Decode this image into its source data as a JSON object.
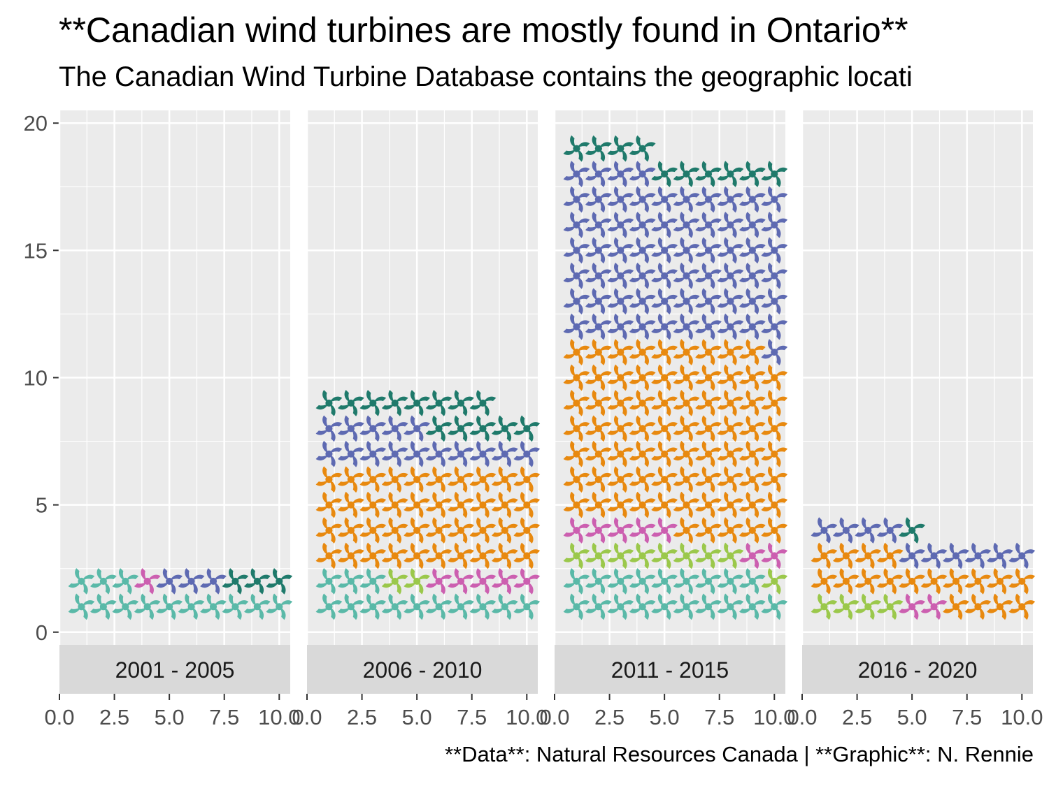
{
  "chart_data": {
    "type": "scatter",
    "title": "**Canadian wind turbines are mostly found in Ontario**",
    "subtitle": "The Canadian Wind Turbine Database contains the geographic locati",
    "caption": "**Data**: Natural Resources Canada | **Graphic**: N. Rennie",
    "xlim": [
      0,
      10.5
    ],
    "ylim": [
      0,
      20
    ],
    "x_ticks": [
      "0.0",
      "2.5",
      "5.0",
      "7.5",
      "10.0"
    ],
    "y_ticks": [
      "0",
      "5",
      "10",
      "15",
      "20"
    ],
    "grid": true,
    "series_colors": {
      "teal_light": "#5ab9a8",
      "magenta": "#cc5fb0",
      "slate_blue": "#5e6ab2",
      "green_dark": "#1f7a6b",
      "lime": "#9bc84b",
      "orange": "#e8890f"
    },
    "icon": "pinwheel-icon",
    "panels": [
      {
        "label": "2001 - 2005",
        "rows": [
          [
            "teal_light",
            10
          ],
          [
            "teal_light",
            3,
            "magenta",
            1,
            "slate_blue",
            3,
            "green_dark",
            3
          ]
        ]
      },
      {
        "label": "2006 - 2010",
        "rows": [
          [
            "teal_light",
            10
          ],
          [
            "teal_light",
            3,
            "lime",
            2,
            "magenta",
            5
          ],
          [
            "orange",
            10
          ],
          [
            "orange",
            10
          ],
          [
            "orange",
            10
          ],
          [
            "orange",
            10
          ],
          [
            "slate_blue",
            10
          ],
          [
            "slate_blue",
            5,
            "green_dark",
            5
          ],
          [
            "green_dark",
            8
          ]
        ]
      },
      {
        "label": "2011 - 2015",
        "rows": [
          [
            "teal_light",
            10
          ],
          [
            "teal_light",
            9,
            "lime",
            1
          ],
          [
            "lime",
            8,
            "magenta",
            2
          ],
          [
            "magenta",
            5,
            "orange",
            5
          ],
          [
            "orange",
            10
          ],
          [
            "orange",
            10
          ],
          [
            "orange",
            10
          ],
          [
            "orange",
            10
          ],
          [
            "orange",
            10
          ],
          [
            "orange",
            10
          ],
          [
            "orange",
            9,
            "slate_blue",
            1
          ],
          [
            "slate_blue",
            10
          ],
          [
            "slate_blue",
            10
          ],
          [
            "slate_blue",
            10
          ],
          [
            "slate_blue",
            10
          ],
          [
            "slate_blue",
            10
          ],
          [
            "slate_blue",
            10
          ],
          [
            "slate_blue",
            4,
            "green_dark",
            6
          ],
          [
            "green_dark",
            4
          ]
        ]
      },
      {
        "label": "2016 - 2020",
        "rows": [
          [
            "lime",
            4,
            "magenta",
            2,
            "orange",
            4
          ],
          [
            "orange",
            10
          ],
          [
            "orange",
            4,
            "slate_blue",
            6
          ],
          [
            "slate_blue",
            4,
            "green_dark",
            1
          ]
        ]
      }
    ]
  }
}
